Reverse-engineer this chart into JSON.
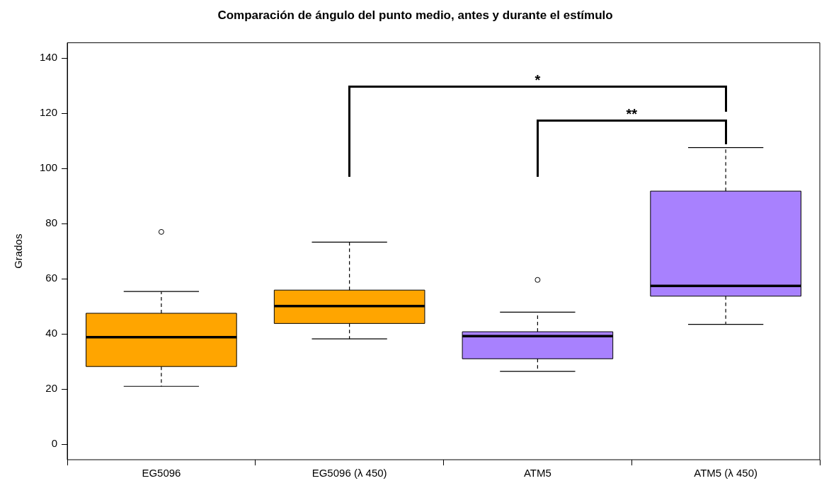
{
  "chart_data": {
    "type": "box",
    "title": "Comparación de ángulo del punto medio, antes y durante el estímulo",
    "ylabel": "Grados",
    "categories": [
      "EG5096",
      "EG5096 (λ 450)",
      "ATM5",
      "ATM5 (λ 450)"
    ],
    "colors": [
      "#ffa500",
      "#ffa500",
      "#a881fe",
      "#a881fe"
    ],
    "boxes": [
      {
        "low": 21,
        "q1": 28.2,
        "median": 38.8,
        "q3": 47.5,
        "high": 55.4,
        "outliers": [
          77
        ]
      },
      {
        "low": 38.2,
        "q1": 43.8,
        "median": 50.1,
        "q3": 55.9,
        "high": 73.3
      },
      {
        "low": 26.4,
        "q1": 31,
        "median": 39.2,
        "q3": 40.8,
        "high": 47.9,
        "outliers": [
          59.6
        ]
      },
      {
        "low": 43.5,
        "q1": 53.7,
        "median": 57.4,
        "q3": 91.8,
        "high": 107.6
      }
    ],
    "ylim": [
      -5.6,
      145.6
    ],
    "yticks": [
      0,
      20,
      40,
      60,
      80,
      100,
      120,
      140
    ],
    "annotations": [
      "*",
      "**"
    ],
    "grid": false,
    "legend": false
  }
}
